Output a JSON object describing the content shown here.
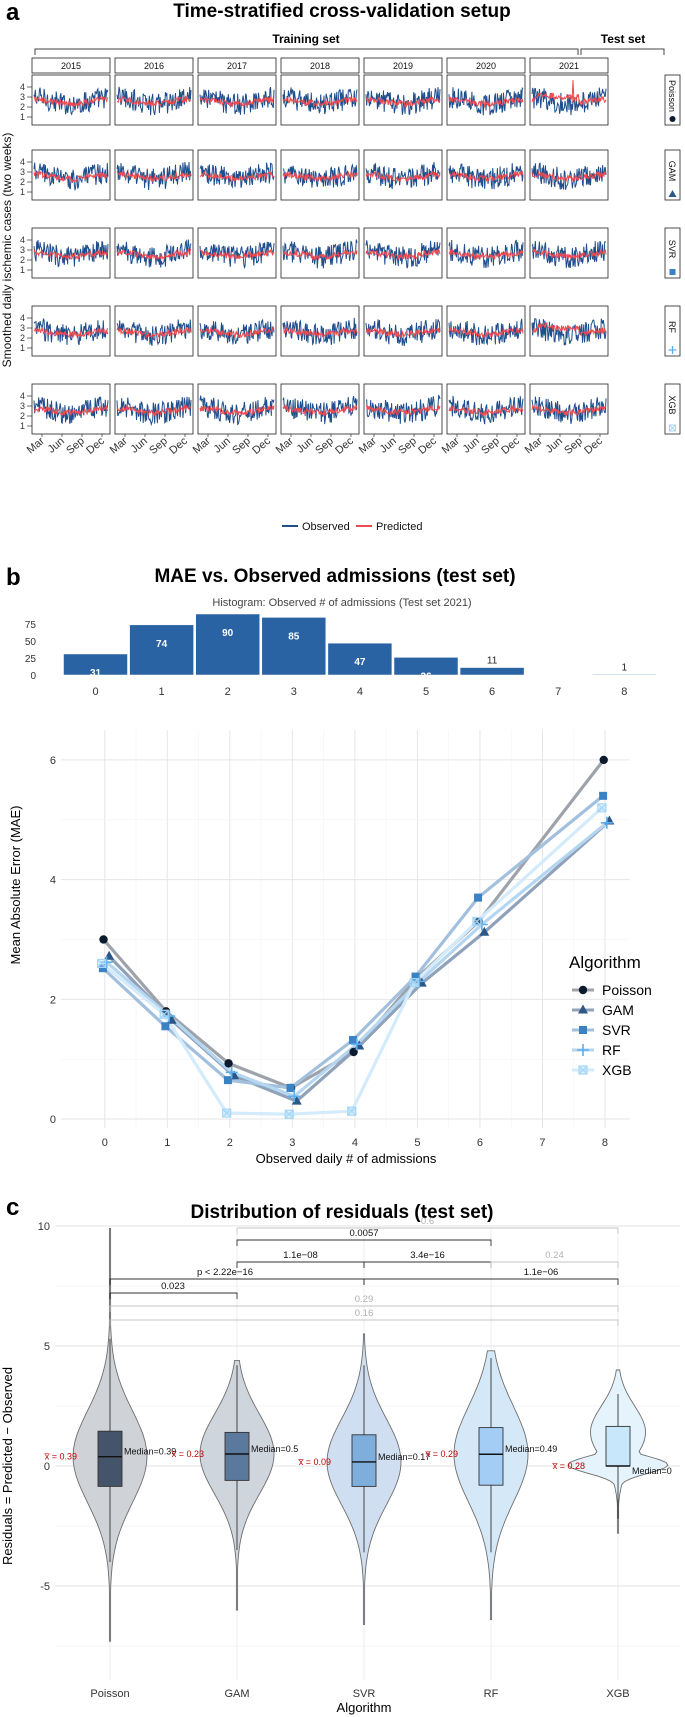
{
  "panel_a": {
    "letter": "a",
    "title": "Time-stratified cross-validation setup",
    "training_label": "Training set",
    "test_label": "Test set",
    "years": [
      "2015",
      "2016",
      "2017",
      "2018",
      "2019",
      "2020",
      "2021"
    ],
    "models": [
      "Poisson",
      "GAM",
      "SVR",
      "RF",
      "XGB"
    ],
    "y_ticks": [
      "1",
      "2",
      "3",
      "4"
    ],
    "month_ticks": [
      "Mar",
      "Jun",
      "Sep",
      "Dec"
    ],
    "y_axis_title": "Smoothed daily ischemic cases (two weeks)",
    "legend": [
      {
        "label": "Observed",
        "color": "#1f4e8c"
      },
      {
        "label": "Predicted",
        "color": "#ee4a50"
      }
    ]
  },
  "panel_b": {
    "letter": "b",
    "title": "MAE vs. Observed admissions (test set)",
    "histogram_title": "Histogram: Observed # of admissions (Test set 2021)",
    "hist_y_ticks": [
      "0",
      "25",
      "50",
      "75"
    ],
    "x_axis_title": "Observed daily # of admissions",
    "y_axis_title": "Mean Absolute Error (MAE)",
    "legend_title": "Algorithm"
  },
  "panel_c": {
    "letter": "c",
    "title": "Distribution of residuals (test set)",
    "x_axis_title": "Algorithm",
    "y_axis_title": "Residuals = Predicted − Observed"
  },
  "chart_data": [
    {
      "type": "histogram",
      "title": "Histogram: Observed # of admissions (Test set 2021)",
      "categories": [
        0,
        1,
        2,
        3,
        4,
        5,
        6,
        7,
        8
      ],
      "values": [
        31,
        74,
        90,
        85,
        47,
        26,
        11,
        0,
        1
      ],
      "value_labels": [
        "31",
        "74",
        "90",
        "85",
        "47",
        "26",
        "11",
        "",
        "1"
      ],
      "ylim": [
        0,
        90
      ],
      "color": "#2a63a3"
    },
    {
      "type": "line",
      "title": "MAE vs. Observed admissions (test set)",
      "xlabel": "Observed daily # of admissions",
      "ylabel": "Mean Absolute Error (MAE)",
      "x": [
        0,
        1,
        2,
        3,
        4,
        5,
        6,
        8
      ],
      "x_ticks": [
        0,
        1,
        2,
        3,
        4,
        5,
        6,
        7,
        8
      ],
      "y_ticks": [
        0,
        2,
        4,
        6
      ],
      "xlim": [
        -0.7,
        8.4
      ],
      "ylim": [
        -0.15,
        6.5
      ],
      "series": [
        {
          "name": "Poisson",
          "marker": "circle",
          "color": "#0d1b2e",
          "line": "#9ea3ab",
          "values": [
            3.0,
            1.8,
            0.93,
            0.52,
            1.12,
            2.35,
            3.3,
            6.0
          ]
        },
        {
          "name": "GAM",
          "marker": "triangle",
          "color": "#2c5787",
          "line": "#8fa2ba",
          "values": [
            2.72,
            1.65,
            0.72,
            0.3,
            1.22,
            2.27,
            3.12,
            4.98
          ]
        },
        {
          "name": "SVR",
          "marker": "square",
          "color": "#3b82c4",
          "line": "#a2c0de",
          "values": [
            2.52,
            1.55,
            0.65,
            0.52,
            1.32,
            2.38,
            3.7,
            5.4
          ]
        },
        {
          "name": "RF",
          "marker": "plus",
          "color": "#5aaef2",
          "line": "#b4d6f1",
          "values": [
            2.62,
            1.72,
            0.78,
            0.38,
            1.25,
            2.3,
            3.25,
            4.95
          ]
        },
        {
          "name": "XGB",
          "marker": "xsquare",
          "color": "#a4d6f8",
          "line": "#d3ebfb",
          "values": [
            2.6,
            1.75,
            0.1,
            0.08,
            0.13,
            2.28,
            3.3,
            5.2
          ]
        }
      ]
    },
    {
      "type": "violin",
      "title": "Distribution of residuals (test set)",
      "xlabel": "Algorithm",
      "ylabel": "Residuals = Predicted − Observed",
      "y_ticks": [
        -5,
        0,
        5,
        10
      ],
      "ylim": [
        -8,
        10.5
      ],
      "groups": [
        {
          "name": "Poisson",
          "median": 0.39,
          "median_label": "Median=0.39",
          "mean_label": "x̅ = 0.39",
          "q1": -0.85,
          "q3": 1.45,
          "wmin": -4.0,
          "wmax": 5.3,
          "min": -7.3,
          "max": 9.9,
          "fill": "#44546a",
          "violin": "#cfd2d6"
        },
        {
          "name": "GAM",
          "median": 0.5,
          "median_label": "Median=0.5",
          "mean_label": "x̅ = 0.23",
          "q1": -0.6,
          "q3": 1.4,
          "wmin": -3.5,
          "wmax": 4.2,
          "min": -6.0,
          "max": 4.4,
          "fill": "#5a799c",
          "violin": "#ced5dd"
        },
        {
          "name": "SVR",
          "median": 0.17,
          "median_label": "Median=0.17",
          "mean_label": "x̅ = 0.09",
          "q1": -0.85,
          "q3": 1.3,
          "wmin": -3.6,
          "wmax": 4.2,
          "min": -6.6,
          "max": 5.5,
          "fill": "#7eaedb",
          "violin": "#cfdef0"
        },
        {
          "name": "RF",
          "median": 0.49,
          "median_label": "Median=0.49",
          "mean_label": "x̅ = 0.29",
          "q1": -0.8,
          "q3": 1.6,
          "wmin": -3.6,
          "wmax": 4.5,
          "min": -6.4,
          "max": 4.8,
          "fill": "#a3cdf4",
          "violin": "#d5e8f8"
        },
        {
          "name": "XGB",
          "median": 0.0,
          "median_label": "Median=0",
          "mean_label": "x̅ = 0.28",
          "q1": 0.0,
          "q3": 1.65,
          "wmin": -2.2,
          "wmax": 3.0,
          "min": -2.8,
          "max": 4.0,
          "fill": "#c8e7fb",
          "violin": "#e5f3fc"
        }
      ],
      "comparisons": [
        {
          "from": "Poisson",
          "to": "GAM",
          "label": "0.023",
          "significant": true
        },
        {
          "from": "Poisson",
          "to": "SVR",
          "label": "p < 2.22e−16",
          "significant": true
        },
        {
          "from": "GAM",
          "to": "SVR",
          "label": "1.1e−08",
          "significant": true
        },
        {
          "from": "GAM",
          "to": "RF",
          "label": "0.0057",
          "significant": true
        },
        {
          "from": "SVR",
          "to": "RF",
          "label": "3.4e−16",
          "significant": true
        },
        {
          "from": "SVR",
          "to": "XGB",
          "label": "1.1e−06",
          "significant": true
        },
        {
          "from": "RF",
          "to": "XGB",
          "label": "0.24",
          "significant": false
        },
        {
          "from": "GAM",
          "to": "XGB",
          "label": "0.6",
          "significant": false
        },
        {
          "from": "Poisson",
          "to": "XGB",
          "label": "0.29",
          "significant": false
        },
        {
          "from": "Poisson",
          "to": "XGB",
          "label": "0.16",
          "significant": false
        }
      ]
    }
  ]
}
